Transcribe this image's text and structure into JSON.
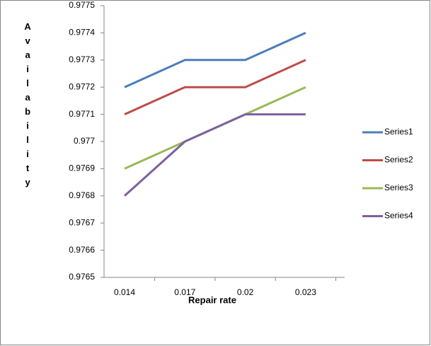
{
  "chart_data": {
    "type": "line",
    "x_label": "Repair rate",
    "y_label": "Availability",
    "categories": [
      "0.014",
      "0.017",
      "0.02",
      "0.023"
    ],
    "series": [
      {
        "name": "Series1",
        "color": "#4a7ebb",
        "values": [
          0.9772,
          0.9773,
          0.9773,
          0.9774
        ]
      },
      {
        "name": "Series2",
        "color": "#be4b48",
        "values": [
          0.9771,
          0.9772,
          0.9772,
          0.9773
        ]
      },
      {
        "name": "Series3",
        "color": "#98b954",
        "values": [
          0.9769,
          0.977,
          0.9771,
          0.9772
        ]
      },
      {
        "name": "Series4",
        "color": "#7d60a0",
        "values": [
          0.9768,
          0.977,
          0.9771,
          0.9771
        ]
      }
    ],
    "ylim": [
      0.9765,
      0.9775
    ],
    "yticks": [
      0.9765,
      0.9766,
      0.9767,
      0.9768,
      0.9769,
      0.977,
      0.9771,
      0.9772,
      0.9773,
      0.9774,
      0.9775
    ],
    "grid": false,
    "legend": "right"
  }
}
